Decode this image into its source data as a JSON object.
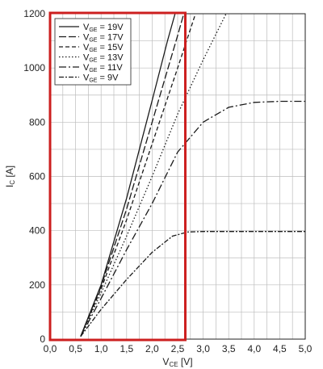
{
  "chart_data": {
    "type": "line",
    "xlabel": {
      "main": "V",
      "sub": "CE",
      "unit": " [V]"
    },
    "ylabel": {
      "main": "I",
      "sub": "C",
      "unit": " [A]"
    },
    "xlim": [
      0,
      5
    ],
    "ylim": [
      0,
      1200
    ],
    "xticks": [
      0,
      0.5,
      1,
      1.5,
      2,
      2.5,
      3,
      3.5,
      4,
      4.5,
      5
    ],
    "xtick_labels": [
      "0,0",
      "0,5",
      "1,0",
      "1,5",
      "2,0",
      "2,5",
      "3,0",
      "3,5",
      "4,0",
      "4,5",
      "5,0"
    ],
    "yticks": [
      0,
      200,
      400,
      600,
      800,
      1000,
      1200
    ],
    "ytick_labels": [
      "0",
      "200",
      "400",
      "600",
      "800",
      "1000",
      "1200"
    ],
    "grid": true,
    "legend_position": "top-left",
    "series": [
      {
        "name": {
          "main": "V",
          "sub": "GE",
          "rest": " = 19V"
        },
        "dash": "",
        "points": [
          [
            0.6,
            10
          ],
          [
            1.0,
            200
          ],
          [
            1.5,
            520
          ],
          [
            2.0,
            880
          ],
          [
            2.3,
            1100
          ],
          [
            2.45,
            1200
          ]
        ]
      },
      {
        "name": {
          "main": "V",
          "sub": "GE",
          "rest": " = 17V"
        },
        "dash": "9 3",
        "points": [
          [
            0.6,
            10
          ],
          [
            1.0,
            195
          ],
          [
            1.5,
            480
          ],
          [
            2.0,
            800
          ],
          [
            2.5,
            1120
          ],
          [
            2.62,
            1200
          ]
        ]
      },
      {
        "name": {
          "main": "V",
          "sub": "GE",
          "rest": " = 15V"
        },
        "dash": "5 3",
        "points": [
          [
            0.6,
            10
          ],
          [
            1.0,
            185
          ],
          [
            1.5,
            440
          ],
          [
            2.0,
            720
          ],
          [
            2.5,
            1000
          ],
          [
            2.85,
            1200
          ]
        ]
      },
      {
        "name": {
          "main": "V",
          "sub": "GE",
          "rest": " = 13V"
        },
        "dash": "1.5 2.5",
        "points": [
          [
            0.6,
            10
          ],
          [
            1.0,
            170
          ],
          [
            1.5,
            380
          ],
          [
            2.0,
            600
          ],
          [
            2.5,
            830
          ],
          [
            3.0,
            1030
          ],
          [
            3.45,
            1200
          ]
        ]
      },
      {
        "name": {
          "main": "V",
          "sub": "GE",
          "rest": " = 11V"
        },
        "dash": "9 3 2 3",
        "points": [
          [
            0.6,
            10
          ],
          [
            1.0,
            150
          ],
          [
            1.5,
            330
          ],
          [
            2.0,
            500
          ],
          [
            2.5,
            690
          ],
          [
            3.0,
            800
          ],
          [
            3.5,
            855
          ],
          [
            4.0,
            873
          ],
          [
            4.5,
            877
          ],
          [
            5.0,
            877
          ]
        ]
      },
      {
        "name": {
          "main": "V",
          "sub": "GE",
          "rest": " = 9V"
        },
        "dash": "6 2 2 2",
        "points": [
          [
            0.6,
            10
          ],
          [
            1.0,
            110
          ],
          [
            1.5,
            220
          ],
          [
            2.0,
            320
          ],
          [
            2.4,
            380
          ],
          [
            2.7,
            395
          ],
          [
            3.0,
            397
          ],
          [
            4.0,
            397
          ],
          [
            5.0,
            397
          ]
        ]
      }
    ],
    "highlight_box": {
      "x_from": 0,
      "x_to": 2.65,
      "y_from": 0,
      "y_to": 1200,
      "color": "#cc1f1f"
    }
  },
  "colors": {
    "line": "#1a1a1a",
    "grid": "#bdbdbd",
    "axis": "#222222",
    "highlight": "#cc1f1f"
  }
}
